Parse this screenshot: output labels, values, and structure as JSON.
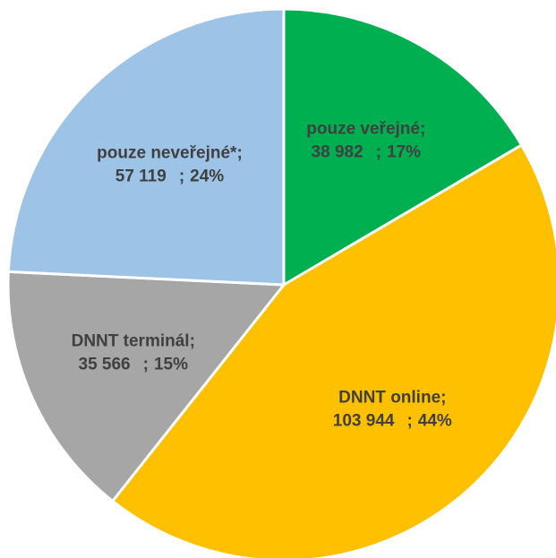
{
  "chart_data": {
    "type": "pie",
    "categories": [
      "pouze veřejné",
      "DNNT online",
      "DNNT terminál",
      "pouze neveřejné*"
    ],
    "values": [
      38982,
      103944,
      35566,
      57119
    ],
    "value_labels": [
      "38 982",
      "103 944",
      "35 566",
      "57 119"
    ],
    "percent_labels": [
      "17%",
      "44%",
      "15%",
      "24%"
    ],
    "label_separator": ";",
    "colors": [
      "#00b050",
      "#ffc000",
      "#a6a6a6",
      "#9dc3e6"
    ]
  }
}
